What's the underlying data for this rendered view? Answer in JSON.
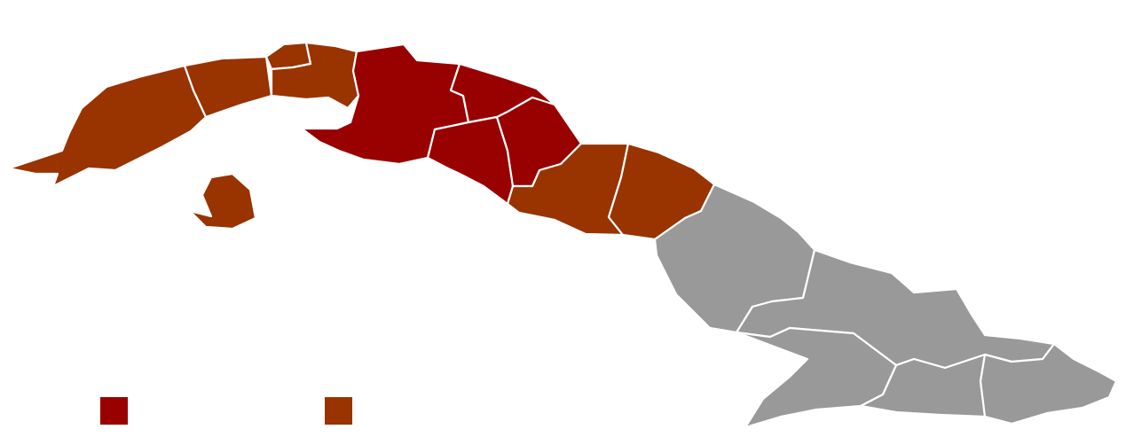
{
  "map": {
    "region": "Cuba",
    "colors": {
      "dark_red": "#990000",
      "brown": "#993300",
      "gray": "#999999",
      "border": "#ffffff",
      "background": "#ffffff"
    },
    "provinces": [
      {
        "id": "pinar-del-rio",
        "category": "brown"
      },
      {
        "id": "artemisa",
        "category": "brown"
      },
      {
        "id": "la-habana",
        "category": "brown"
      },
      {
        "id": "mayabeque",
        "category": "brown"
      },
      {
        "id": "isla-de-la-juventud",
        "category": "brown"
      },
      {
        "id": "matanzas",
        "category": "dark_red"
      },
      {
        "id": "villa-clara",
        "category": "dark_red"
      },
      {
        "id": "cienfuegos",
        "category": "dark_red"
      },
      {
        "id": "sancti-spiritus",
        "category": "dark_red"
      },
      {
        "id": "ciego-de-avila",
        "category": "brown"
      },
      {
        "id": "camaguey",
        "category": "brown"
      },
      {
        "id": "las-tunas",
        "category": "gray"
      },
      {
        "id": "holguin",
        "category": "gray"
      },
      {
        "id": "granma",
        "category": "gray"
      },
      {
        "id": "santiago-de-cuba",
        "category": "gray"
      },
      {
        "id": "guantanamo",
        "category": "gray"
      }
    ]
  },
  "legend": [
    {
      "color": "#990000",
      "label": ""
    },
    {
      "color": "#993300",
      "label": ""
    }
  ]
}
